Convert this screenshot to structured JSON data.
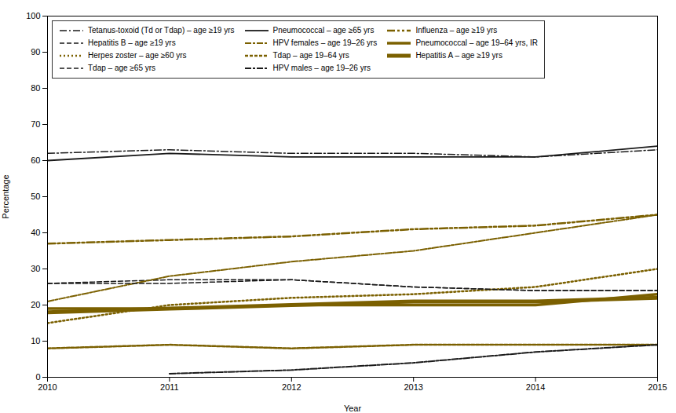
{
  "chart_data": {
    "type": "line",
    "x": [
      2010,
      2011,
      2012,
      2013,
      2014,
      2015
    ],
    "xlabel": "Year",
    "ylabel": "Percentage",
    "xlim": [
      2010,
      2015
    ],
    "xticks": [
      2010,
      2011,
      2012,
      2013,
      2014,
      2015
    ],
    "ylim": [
      0,
      100
    ],
    "yticks": [
      0,
      10,
      20,
      30,
      40,
      50,
      60,
      70,
      80,
      90,
      100
    ],
    "grid": false,
    "legend": "top-left",
    "series": [
      {
        "name": "Tetanus-toxoid (Td or Tdap) – age ≥19 yrs",
        "color": "#1a1a1a",
        "line_style": "dashdot",
        "values": [
          62,
          63,
          62,
          62,
          61,
          63
        ]
      },
      {
        "name": "Pneumococcal – age ≥65 yrs",
        "color": "#1a1a1a",
        "line_style": "solid",
        "values": [
          60,
          62,
          61,
          61,
          61,
          64
        ]
      },
      {
        "name": "Influenza – age ≥19 yrs",
        "color": "#7b6000",
        "line_style": "dash_dot_dot",
        "values": [
          37,
          38,
          39,
          41,
          42,
          45
        ]
      },
      {
        "name": "Hepatitis B – age ≥19 yrs",
        "color": "#1a1a1a",
        "line_style": "dashed",
        "values": [
          26,
          27,
          27,
          25,
          24,
          24
        ]
      },
      {
        "name": "HPV females – age 19–26 yrs",
        "color": "#7b6000",
        "line_style": "dash_dot",
        "values": [
          21,
          28,
          32,
          35,
          40,
          45
        ]
      },
      {
        "name": "Pneumococcal – age 19–64 yrs, IR",
        "color": "#7b6000",
        "line_style": "bold",
        "values": [
          19,
          19,
          20,
          20,
          20,
          23
        ]
      },
      {
        "name": "Herpes zoster – age ≥60 yrs",
        "color": "#7b6000",
        "line_style": "dotted",
        "values": [
          15,
          20,
          22,
          23,
          25,
          30
        ]
      },
      {
        "name": "Tdap – age 19–64 yrs",
        "color": "#7b6000",
        "line_style": "square_dot",
        "values": [
          8,
          9,
          8,
          9,
          9,
          9
        ]
      },
      {
        "name": "Hepatitis A – age ≥19 yrs",
        "color": "#7b6000",
        "line_style": "heavy",
        "values": [
          18,
          19,
          20,
          21,
          21,
          22
        ]
      },
      {
        "name": "Tdap – age ≥65 yrs",
        "color": "#1a1a1a",
        "line_style": "dashed",
        "values": [
          26,
          26,
          27,
          25,
          24,
          24
        ]
      },
      {
        "name": "HPV males – age 19–26 yrs",
        "color": "#1a1a1a",
        "line_style": "dash_dot",
        "values": [
          null,
          1,
          2,
          4,
          7,
          9
        ]
      }
    ]
  }
}
